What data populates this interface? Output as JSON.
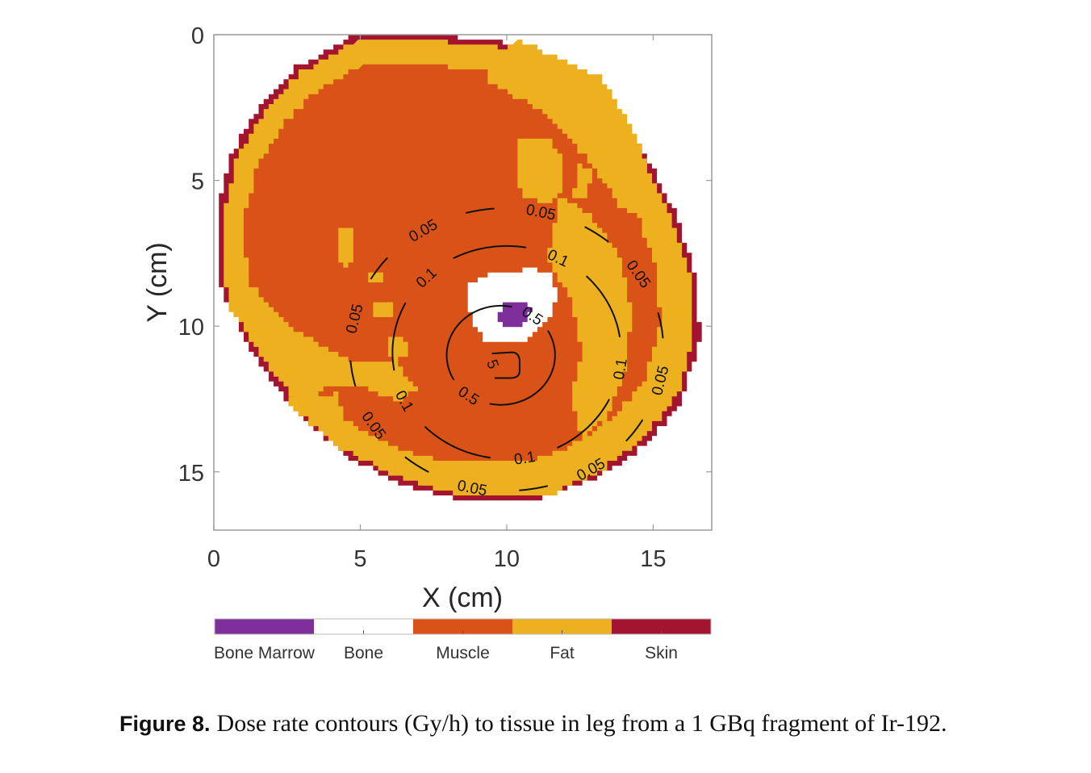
{
  "chart_data": {
    "type": "heatmap",
    "subtype": "tissue-map-with-dose-contours",
    "xlabel": "X (cm)",
    "ylabel": "Y (cm)",
    "xlim": [
      0,
      17
    ],
    "ylim": [
      17,
      0
    ],
    "y_reversed": true,
    "xticks": [
      0,
      5,
      10,
      15
    ],
    "yticks": [
      0,
      5,
      10,
      15
    ],
    "grid": false,
    "colorbar": {
      "placement": "bottom",
      "categories": [
        {
          "name": "Bone Marrow",
          "color": "#7f2f9c"
        },
        {
          "name": "Bone",
          "color": "#ffffff"
        },
        {
          "name": "Muscle",
          "color": "#d95319"
        },
        {
          "name": "Fat",
          "color": "#edb120"
        },
        {
          "name": "Skin",
          "color": "#a2142f"
        }
      ]
    },
    "tissue_regions": {
      "skin_outline": [
        [
          4.8,
          0
        ],
        [
          7.3,
          0
        ],
        [
          10.2,
          0.3
        ],
        [
          11.6,
          0.9
        ],
        [
          12.8,
          1.8
        ],
        [
          13.9,
          3.0
        ],
        [
          14.9,
          4.5
        ],
        [
          15.8,
          6.3
        ],
        [
          16.5,
          8.5
        ],
        [
          16.6,
          10.5
        ],
        [
          16.0,
          12.6
        ],
        [
          14.8,
          14.1
        ],
        [
          13.2,
          15.2
        ],
        [
          11.3,
          15.9
        ],
        [
          8.3,
          15.9
        ],
        [
          6.4,
          15.4
        ],
        [
          4.5,
          14.4
        ],
        [
          2.7,
          12.8
        ],
        [
          1.3,
          10.8
        ],
        [
          0.2,
          8.5
        ],
        [
          0.1,
          6.0
        ],
        [
          0.6,
          4.0
        ],
        [
          1.6,
          2.4
        ],
        [
          2.8,
          1.1
        ]
      ],
      "bone_center": [
        10.0,
        9.4
      ],
      "marrow_center": [
        10.2,
        9.6
      ],
      "source_position": [
        10.0,
        10.8
      ]
    },
    "contours": {
      "unit": "Gy/h",
      "levels": [
        0.05,
        0.1,
        0.5,
        5
      ],
      "series": [
        {
          "level": 0.05,
          "label": "0.05",
          "center": [
            10.0,
            10.8
          ],
          "rx": 5.35,
          "ry": 4.85,
          "label_count": 8
        },
        {
          "level": 0.1,
          "label": "0.1",
          "center": [
            10.0,
            10.9
          ],
          "rx": 3.9,
          "ry": 3.65,
          "label_count": 5
        },
        {
          "level": 0.5,
          "label": "0.5",
          "center": [
            9.8,
            11.0
          ],
          "rx": 1.85,
          "ry": 1.7,
          "label_count": 2
        },
        {
          "level": 5,
          "label": "5",
          "center": [
            9.9,
            11.3
          ],
          "rx": 0.45,
          "ry": 0.4,
          "label_count": 1
        }
      ]
    }
  },
  "caption": {
    "figure_number": "Figure 8.",
    "text": "Dose rate contours (Gy/h) to tissue in leg from a 1 GBq fragment of Ir-192."
  }
}
